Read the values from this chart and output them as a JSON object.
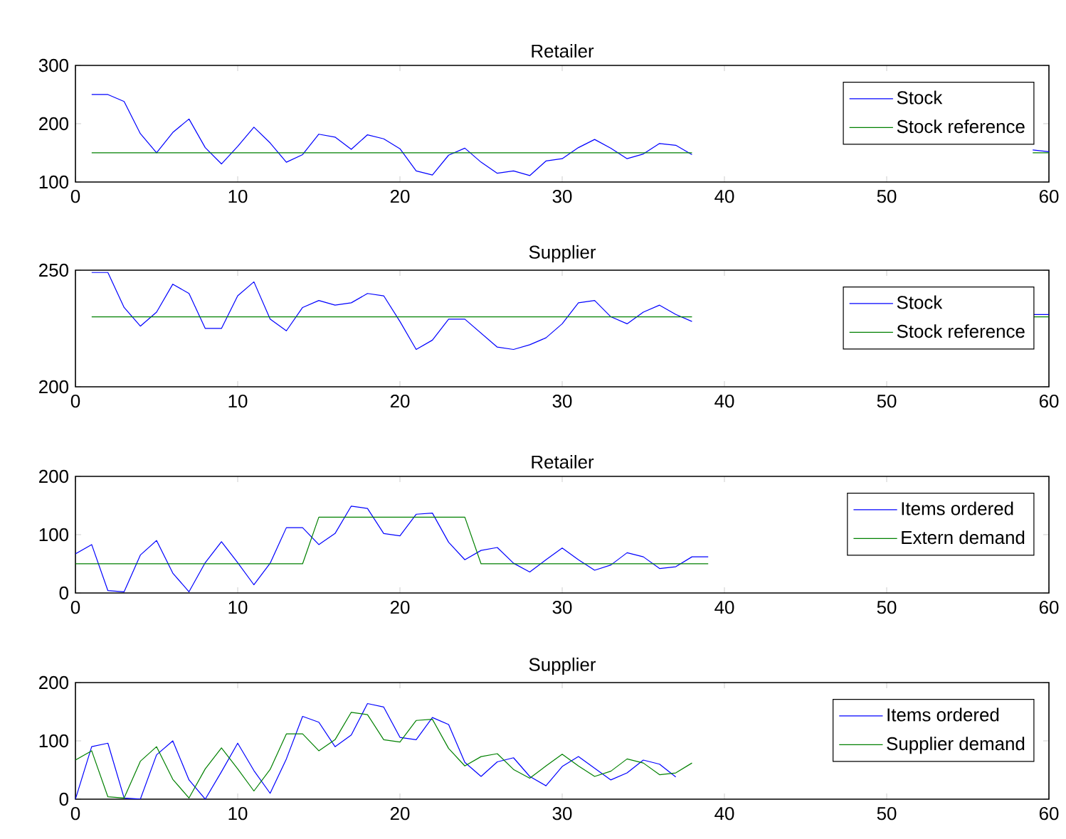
{
  "chart_data": [
    {
      "type": "line",
      "title": "Retailer",
      "x": [
        1,
        2,
        3,
        4,
        5,
        6,
        7,
        8,
        9,
        10,
        11,
        12,
        13,
        14,
        15,
        16,
        17,
        18,
        19,
        20,
        21,
        22,
        23,
        24,
        25,
        26,
        27,
        28,
        29,
        30,
        31,
        32,
        33,
        34,
        35,
        36,
        37,
        38,
        39,
        40,
        41,
        42,
        43,
        44,
        45,
        46,
        47,
        48,
        49,
        50,
        51,
        52,
        53,
        54,
        55,
        56,
        57,
        58,
        59,
        60
      ],
      "xlim": [
        0,
        60
      ],
      "xticks": [
        0,
        10,
        20,
        30,
        40,
        50,
        60
      ],
      "ylim": [
        100,
        300
      ],
      "yticks": [
        100,
        200,
        300
      ],
      "legend": "top right",
      "series": [
        {
          "name": "Stock",
          "color": "#0000ff",
          "values": [
            250,
            250,
            238,
            183,
            150,
            185,
            208,
            159,
            131,
            161,
            194,
            167,
            134,
            147,
            182,
            177,
            156,
            181,
            174,
            157,
            119,
            112,
            146,
            158,
            134,
            115,
            119,
            111,
            136,
            140,
            159,
            173,
            158,
            140,
            148,
            166,
            163,
            147,
            null,
            null,
            null,
            null,
            null,
            null,
            null,
            null,
            null,
            null,
            null,
            null,
            null,
            null,
            null,
            null,
            null,
            null,
            null,
            null,
            155,
            152
          ]
        },
        {
          "name": "Stock reference",
          "color": "#008000",
          "values": [
            150,
            150,
            150,
            150,
            150,
            150,
            150,
            150,
            150,
            150,
            150,
            150,
            150,
            150,
            150,
            150,
            150,
            150,
            150,
            150,
            150,
            150,
            150,
            150,
            150,
            150,
            150,
            150,
            150,
            150,
            150,
            150,
            150,
            150,
            150,
            150,
            150,
            150,
            null,
            null,
            null,
            null,
            null,
            null,
            null,
            null,
            null,
            null,
            null,
            null,
            null,
            null,
            null,
            null,
            null,
            null,
            null,
            null,
            150,
            150
          ]
        }
      ]
    },
    {
      "type": "line",
      "title": "Supplier",
      "x": [
        1,
        2,
        3,
        4,
        5,
        6,
        7,
        8,
        9,
        10,
        11,
        12,
        13,
        14,
        15,
        16,
        17,
        18,
        19,
        20,
        21,
        22,
        23,
        24,
        25,
        26,
        27,
        28,
        29,
        30,
        31,
        32,
        33,
        34,
        35,
        36,
        37,
        38,
        39,
        40,
        41,
        42,
        43,
        44,
        45,
        46,
        47,
        48,
        49,
        50,
        51,
        52,
        53,
        54,
        55,
        56,
        57,
        58,
        59,
        60
      ],
      "xlim": [
        0,
        60
      ],
      "xticks": [
        0,
        10,
        20,
        30,
        40,
        50,
        60
      ],
      "ylim": [
        200,
        250
      ],
      "yticks": [
        200,
        250
      ],
      "legend": "top right",
      "series": [
        {
          "name": "Stock",
          "color": "#0000ff",
          "values": [
            249,
            249,
            234,
            226,
            232,
            244,
            240,
            225,
            225,
            239,
            245,
            229,
            224,
            234,
            237,
            235,
            236,
            240,
            239,
            228,
            216,
            220,
            229,
            229,
            223,
            217,
            216,
            218,
            221,
            227,
            236,
            237,
            230,
            227,
            232,
            235,
            231,
            228,
            null,
            null,
            null,
            null,
            null,
            null,
            null,
            null,
            null,
            null,
            null,
            null,
            null,
            null,
            null,
            null,
            null,
            null,
            null,
            null,
            231,
            231
          ]
        },
        {
          "name": "Stock reference",
          "color": "#008000",
          "values": [
            230,
            230,
            230,
            230,
            230,
            230,
            230,
            230,
            230,
            230,
            230,
            230,
            230,
            230,
            230,
            230,
            230,
            230,
            230,
            230,
            230,
            230,
            230,
            230,
            230,
            230,
            230,
            230,
            230,
            230,
            230,
            230,
            230,
            230,
            230,
            230,
            230,
            230,
            null,
            null,
            null,
            null,
            null,
            null,
            null,
            null,
            null,
            null,
            null,
            null,
            null,
            null,
            null,
            null,
            null,
            null,
            null,
            null,
            230,
            230
          ]
        }
      ]
    },
    {
      "type": "line",
      "title": "Retailer",
      "x": [
        0,
        1,
        2,
        3,
        4,
        5,
        6,
        7,
        8,
        9,
        10,
        11,
        12,
        13,
        14,
        15,
        16,
        17,
        18,
        19,
        20,
        21,
        22,
        23,
        24,
        25,
        26,
        27,
        28,
        29,
        30,
        31,
        32,
        33,
        34,
        35,
        36,
        37,
        38,
        39
      ],
      "xlim": [
        0,
        60
      ],
      "xticks": [
        0,
        10,
        20,
        30,
        40,
        50,
        60
      ],
      "ylim": [
        0,
        200
      ],
      "yticks": [
        0,
        100,
        200
      ],
      "legend": "top right",
      "series": [
        {
          "name": "Items ordered",
          "color": "#0000ff",
          "values": [
            67,
            83,
            4,
            2,
            65,
            90,
            34,
            2,
            52,
            88,
            52,
            14,
            51,
            112,
            112,
            83,
            102,
            149,
            145,
            102,
            98,
            135,
            137,
            87,
            57,
            73,
            78,
            51,
            36,
            57,
            77,
            57,
            39,
            48,
            69,
            62,
            42,
            45,
            62,
            62
          ]
        },
        {
          "name": "Extern demand",
          "color": "#008000",
          "values": [
            50,
            50,
            50,
            50,
            50,
            50,
            50,
            50,
            50,
            50,
            50,
            50,
            50,
            50,
            50,
            130,
            130,
            130,
            130,
            130,
            130,
            130,
            130,
            130,
            130,
            50,
            50,
            50,
            50,
            50,
            50,
            50,
            50,
            50,
            50,
            50,
            50,
            50,
            50,
            50
          ]
        }
      ]
    },
    {
      "type": "line",
      "title": "Supplier",
      "x": [
        0,
        1,
        2,
        3,
        4,
        5,
        6,
        7,
        8,
        9,
        10,
        11,
        12,
        13,
        14,
        15,
        16,
        17,
        18,
        19,
        20,
        21,
        22,
        23,
        24,
        25,
        26,
        27,
        28,
        29,
        30,
        31,
        32,
        33,
        34,
        35,
        36,
        37,
        38
      ],
      "xlim": [
        0,
        60
      ],
      "xticks": [
        0,
        10,
        20,
        30,
        40,
        50,
        60
      ],
      "ylim": [
        0,
        200
      ],
      "yticks": [
        0,
        100,
        200
      ],
      "legend": "top right",
      "series": [
        {
          "name": "Items ordered",
          "color": "#0000ff",
          "values": [
            0,
            90,
            96,
            2,
            0,
            76,
            100,
            33,
            0,
            47,
            96,
            49,
            10,
            69,
            142,
            132,
            90,
            110,
            164,
            158,
            106,
            102,
            140,
            128,
            63,
            39,
            64,
            71,
            39,
            23,
            56,
            73,
            53,
            33,
            45,
            67,
            60,
            38,
            null
          ]
        },
        {
          "name": "Supplier demand",
          "color": "#008000",
          "values": [
            67,
            83,
            4,
            2,
            65,
            90,
            34,
            2,
            52,
            88,
            52,
            14,
            51,
            112,
            112,
            83,
            102,
            149,
            145,
            102,
            98,
            135,
            137,
            87,
            57,
            73,
            78,
            51,
            36,
            57,
            77,
            57,
            39,
            48,
            69,
            62,
            42,
            45,
            62
          ]
        }
      ]
    }
  ]
}
